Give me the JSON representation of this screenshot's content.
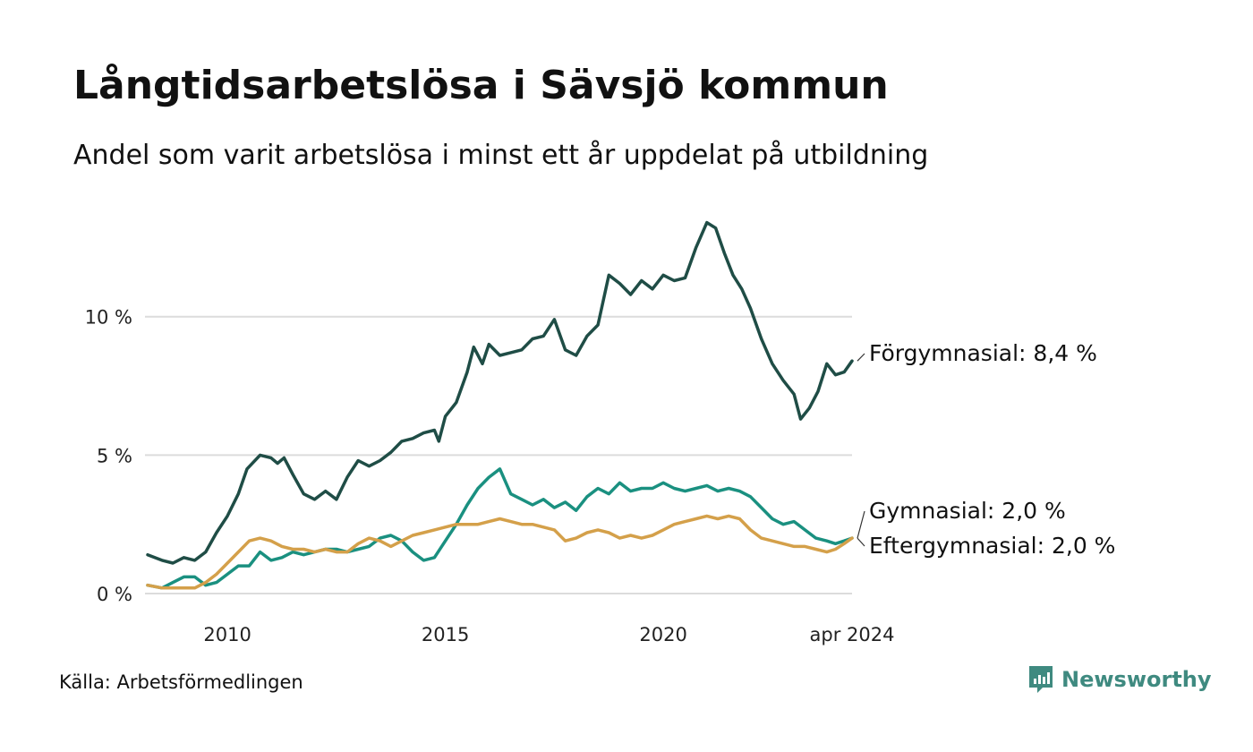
{
  "header": {
    "title": "Långtidsarbetslösa i Sävsjö kommun",
    "subtitle": "Andel som varit arbetslösa i minst ett år uppdelat på utbildning"
  },
  "footer": {
    "source": "Källa: Arbetsförmedlingen",
    "brand": "Newsworthy",
    "brand_color": "#3f8a80"
  },
  "chart_data": {
    "type": "line",
    "title": "Långtidsarbetslösa i Sävsjö kommun",
    "subtitle": "Andel som varit arbetslösa i minst ett år uppdelat på utbildning",
    "xlabel": "",
    "ylabel": "",
    "x_range": [
      2008.17,
      2024.33
    ],
    "ylim": [
      0,
      14
    ],
    "y_ticks": [
      0,
      5,
      10
    ],
    "y_tick_labels": [
      "0 %",
      "5 %",
      "10 %"
    ],
    "x_ticks": [
      2010,
      2015,
      2020,
      2024.33
    ],
    "x_tick_labels": [
      "2010",
      "2015",
      "2020",
      "apr 2024"
    ],
    "grid": true,
    "series": [
      {
        "name": "Förgymnasial",
        "end_label": "Förgymnasial: 8,4 %",
        "color": "#1f4d46",
        "points": [
          [
            2008.17,
            1.4
          ],
          [
            2008.5,
            1.2
          ],
          [
            2008.75,
            1.1
          ],
          [
            2009.0,
            1.3
          ],
          [
            2009.25,
            1.2
          ],
          [
            2009.5,
            1.5
          ],
          [
            2009.75,
            2.2
          ],
          [
            2010.0,
            2.8
          ],
          [
            2010.25,
            3.6
          ],
          [
            2010.45,
            4.5
          ],
          [
            2010.75,
            5.0
          ],
          [
            2011.0,
            4.9
          ],
          [
            2011.15,
            4.7
          ],
          [
            2011.3,
            4.9
          ],
          [
            2011.5,
            4.3
          ],
          [
            2011.75,
            3.6
          ],
          [
            2012.0,
            3.4
          ],
          [
            2012.25,
            3.7
          ],
          [
            2012.5,
            3.4
          ],
          [
            2012.75,
            4.2
          ],
          [
            2013.0,
            4.8
          ],
          [
            2013.25,
            4.6
          ],
          [
            2013.5,
            4.8
          ],
          [
            2013.75,
            5.1
          ],
          [
            2014.0,
            5.5
          ],
          [
            2014.25,
            5.6
          ],
          [
            2014.5,
            5.8
          ],
          [
            2014.75,
            5.9
          ],
          [
            2014.85,
            5.5
          ],
          [
            2015.0,
            6.4
          ],
          [
            2015.25,
            6.9
          ],
          [
            2015.5,
            8.0
          ],
          [
            2015.65,
            8.9
          ],
          [
            2015.85,
            8.3
          ],
          [
            2016.0,
            9.0
          ],
          [
            2016.25,
            8.6
          ],
          [
            2016.5,
            8.7
          ],
          [
            2016.75,
            8.8
          ],
          [
            2017.0,
            9.2
          ],
          [
            2017.25,
            9.3
          ],
          [
            2017.5,
            9.9
          ],
          [
            2017.75,
            8.8
          ],
          [
            2018.0,
            8.6
          ],
          [
            2018.25,
            9.3
          ],
          [
            2018.5,
            9.7
          ],
          [
            2018.75,
            11.5
          ],
          [
            2019.0,
            11.2
          ],
          [
            2019.25,
            10.8
          ],
          [
            2019.5,
            11.3
          ],
          [
            2019.75,
            11.0
          ],
          [
            2020.0,
            11.5
          ],
          [
            2020.25,
            11.3
          ],
          [
            2020.5,
            11.4
          ],
          [
            2020.75,
            12.5
          ],
          [
            2021.0,
            13.4
          ],
          [
            2021.2,
            13.2
          ],
          [
            2021.4,
            12.3
          ],
          [
            2021.6,
            11.5
          ],
          [
            2021.8,
            11.0
          ],
          [
            2022.0,
            10.3
          ],
          [
            2022.25,
            9.2
          ],
          [
            2022.5,
            8.3
          ],
          [
            2022.75,
            7.7
          ],
          [
            2023.0,
            7.2
          ],
          [
            2023.15,
            6.3
          ],
          [
            2023.35,
            6.7
          ],
          [
            2023.55,
            7.3
          ],
          [
            2023.75,
            8.3
          ],
          [
            2023.95,
            7.9
          ],
          [
            2024.15,
            8.0
          ],
          [
            2024.33,
            8.4
          ]
        ]
      },
      {
        "name": "Gymnasial",
        "end_label": "Gymnasial: 2,0 %",
        "color": "#1a9080",
        "points": [
          [
            2008.17,
            0.3
          ],
          [
            2008.5,
            0.2
          ],
          [
            2008.75,
            0.4
          ],
          [
            2009.0,
            0.6
          ],
          [
            2009.25,
            0.6
          ],
          [
            2009.5,
            0.3
          ],
          [
            2009.75,
            0.4
          ],
          [
            2010.0,
            0.7
          ],
          [
            2010.25,
            1.0
          ],
          [
            2010.5,
            1.0
          ],
          [
            2010.75,
            1.5
          ],
          [
            2011.0,
            1.2
          ],
          [
            2011.25,
            1.3
          ],
          [
            2011.5,
            1.5
          ],
          [
            2011.75,
            1.4
          ],
          [
            2012.0,
            1.5
          ],
          [
            2012.25,
            1.6
          ],
          [
            2012.5,
            1.6
          ],
          [
            2012.75,
            1.5
          ],
          [
            2013.0,
            1.6
          ],
          [
            2013.25,
            1.7
          ],
          [
            2013.5,
            2.0
          ],
          [
            2013.75,
            2.1
          ],
          [
            2014.0,
            1.9
          ],
          [
            2014.25,
            1.5
          ],
          [
            2014.5,
            1.2
          ],
          [
            2014.75,
            1.3
          ],
          [
            2015.0,
            1.9
          ],
          [
            2015.25,
            2.5
          ],
          [
            2015.5,
            3.2
          ],
          [
            2015.75,
            3.8
          ],
          [
            2016.0,
            4.2
          ],
          [
            2016.25,
            4.5
          ],
          [
            2016.5,
            3.6
          ],
          [
            2016.75,
            3.4
          ],
          [
            2017.0,
            3.2
          ],
          [
            2017.25,
            3.4
          ],
          [
            2017.5,
            3.1
          ],
          [
            2017.75,
            3.3
          ],
          [
            2018.0,
            3.0
          ],
          [
            2018.25,
            3.5
          ],
          [
            2018.5,
            3.8
          ],
          [
            2018.75,
            3.6
          ],
          [
            2019.0,
            4.0
          ],
          [
            2019.25,
            3.7
          ],
          [
            2019.5,
            3.8
          ],
          [
            2019.75,
            3.8
          ],
          [
            2020.0,
            4.0
          ],
          [
            2020.25,
            3.8
          ],
          [
            2020.5,
            3.7
          ],
          [
            2020.75,
            3.8
          ],
          [
            2021.0,
            3.9
          ],
          [
            2021.25,
            3.7
          ],
          [
            2021.5,
            3.8
          ],
          [
            2021.75,
            3.7
          ],
          [
            2022.0,
            3.5
          ],
          [
            2022.25,
            3.1
          ],
          [
            2022.5,
            2.7
          ],
          [
            2022.75,
            2.5
          ],
          [
            2023.0,
            2.6
          ],
          [
            2023.25,
            2.3
          ],
          [
            2023.5,
            2.0
          ],
          [
            2023.75,
            1.9
          ],
          [
            2023.95,
            1.8
          ],
          [
            2024.15,
            1.9
          ],
          [
            2024.33,
            2.0
          ]
        ]
      },
      {
        "name": "Eftergymnasial",
        "end_label": "Eftergymnasial: 2,0 %",
        "color": "#d4a04a",
        "points": [
          [
            2008.17,
            0.3
          ],
          [
            2008.5,
            0.2
          ],
          [
            2008.75,
            0.2
          ],
          [
            2009.0,
            0.2
          ],
          [
            2009.25,
            0.2
          ],
          [
            2009.5,
            0.4
          ],
          [
            2009.75,
            0.7
          ],
          [
            2010.0,
            1.1
          ],
          [
            2010.25,
            1.5
          ],
          [
            2010.5,
            1.9
          ],
          [
            2010.75,
            2.0
          ],
          [
            2011.0,
            1.9
          ],
          [
            2011.25,
            1.7
          ],
          [
            2011.5,
            1.6
          ],
          [
            2011.75,
            1.6
          ],
          [
            2012.0,
            1.5
          ],
          [
            2012.25,
            1.6
          ],
          [
            2012.5,
            1.5
          ],
          [
            2012.75,
            1.5
          ],
          [
            2013.0,
            1.8
          ],
          [
            2013.25,
            2.0
          ],
          [
            2013.5,
            1.9
          ],
          [
            2013.75,
            1.7
          ],
          [
            2014.0,
            1.9
          ],
          [
            2014.25,
            2.1
          ],
          [
            2014.5,
            2.2
          ],
          [
            2014.75,
            2.3
          ],
          [
            2015.0,
            2.4
          ],
          [
            2015.25,
            2.5
          ],
          [
            2015.5,
            2.5
          ],
          [
            2015.75,
            2.5
          ],
          [
            2016.0,
            2.6
          ],
          [
            2016.25,
            2.7
          ],
          [
            2016.5,
            2.6
          ],
          [
            2016.75,
            2.5
          ],
          [
            2017.0,
            2.5
          ],
          [
            2017.25,
            2.4
          ],
          [
            2017.5,
            2.3
          ],
          [
            2017.75,
            1.9
          ],
          [
            2018.0,
            2.0
          ],
          [
            2018.25,
            2.2
          ],
          [
            2018.5,
            2.3
          ],
          [
            2018.75,
            2.2
          ],
          [
            2019.0,
            2.0
          ],
          [
            2019.25,
            2.1
          ],
          [
            2019.5,
            2.0
          ],
          [
            2019.75,
            2.1
          ],
          [
            2020.0,
            2.3
          ],
          [
            2020.25,
            2.5
          ],
          [
            2020.5,
            2.6
          ],
          [
            2020.75,
            2.7
          ],
          [
            2021.0,
            2.8
          ],
          [
            2021.25,
            2.7
          ],
          [
            2021.5,
            2.8
          ],
          [
            2021.75,
            2.7
          ],
          [
            2022.0,
            2.3
          ],
          [
            2022.25,
            2.0
          ],
          [
            2022.5,
            1.9
          ],
          [
            2022.75,
            1.8
          ],
          [
            2023.0,
            1.7
          ],
          [
            2023.25,
            1.7
          ],
          [
            2023.5,
            1.6
          ],
          [
            2023.75,
            1.5
          ],
          [
            2023.95,
            1.6
          ],
          [
            2024.15,
            1.8
          ],
          [
            2024.33,
            2.0
          ]
        ]
      }
    ]
  }
}
